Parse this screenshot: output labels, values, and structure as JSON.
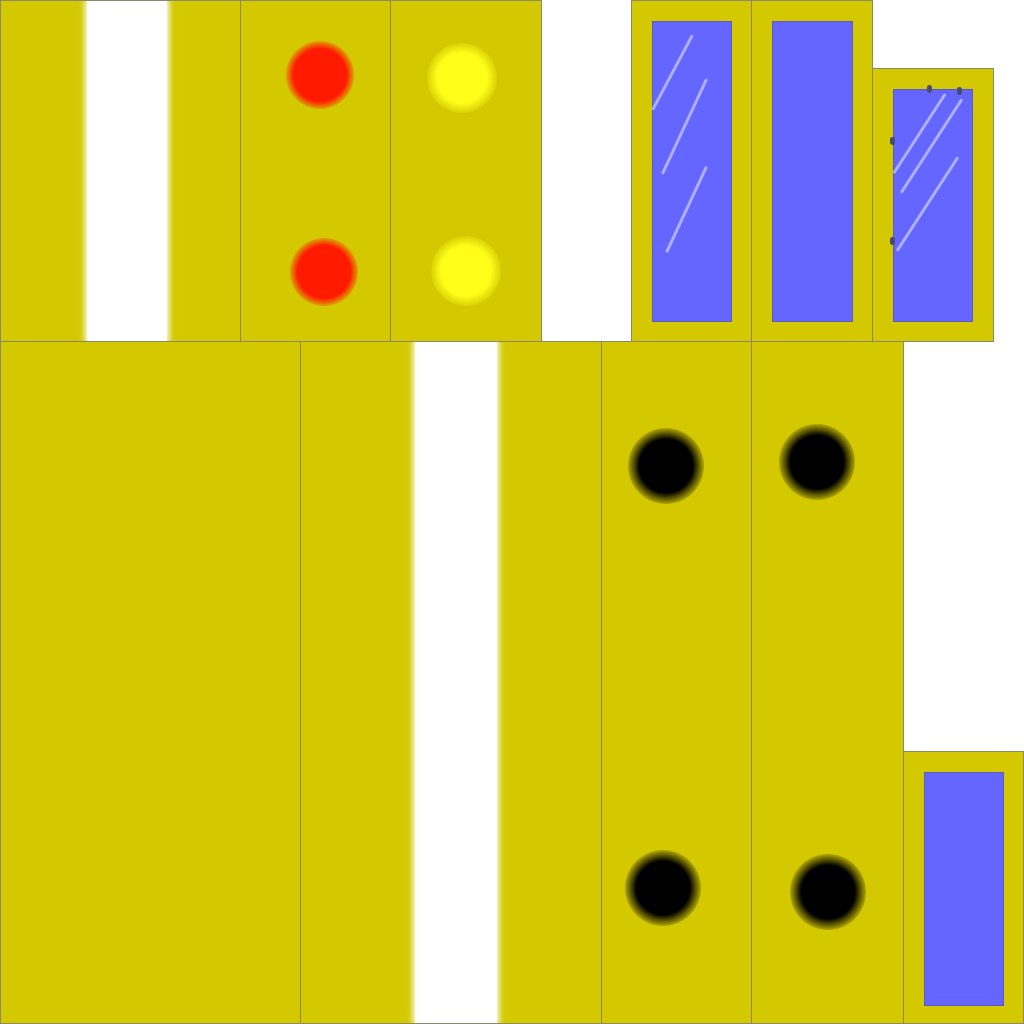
{
  "colors": {
    "panel": "#d4c900",
    "background": "#ffffff",
    "stripe": "#ffffff",
    "taillight": "#ff1a00",
    "headlight": "#ffff1a",
    "window": "#6466ff",
    "window_glint": "#c8ccff",
    "wheel_hole": "#000000",
    "tile_outline": "#8a8a6a"
  },
  "tiles": [
    {
      "id": "side-stripe-top",
      "kind": "stripe"
    },
    {
      "id": "rear-taillights",
      "kind": "lights",
      "light_color": "taillight"
    },
    {
      "id": "front-headlights",
      "kind": "lights",
      "light_color": "headlight"
    },
    {
      "id": "window-glinted",
      "kind": "window"
    },
    {
      "id": "window-plain",
      "kind": "window"
    },
    {
      "id": "door-window-hinged",
      "kind": "window"
    },
    {
      "id": "roof-panel",
      "kind": "plain"
    },
    {
      "id": "hood-stripe",
      "kind": "stripe"
    },
    {
      "id": "side-wheel-wells-left",
      "kind": "wheel-wells"
    },
    {
      "id": "side-wheel-wells-right",
      "kind": "wheel-wells"
    },
    {
      "id": "small-window",
      "kind": "window"
    }
  ]
}
